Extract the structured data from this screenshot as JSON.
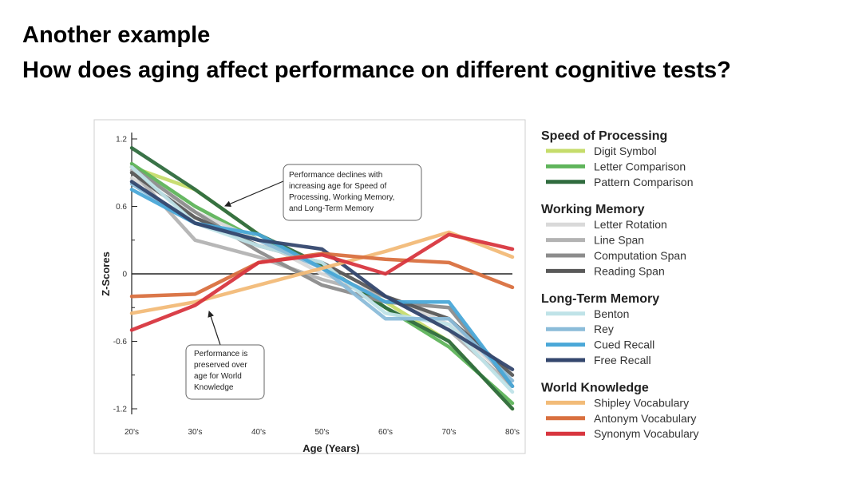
{
  "slide": {
    "title_line1": "Another example",
    "title_line2": "How does aging affect performance on different cognitive tests?"
  },
  "chart_data": {
    "type": "line",
    "xlabel": "Age (Years)",
    "ylabel": "Z-Scores",
    "ylim": [
      -1.2,
      1.2
    ],
    "yticks": [
      "1.2",
      "0.6",
      "0",
      "-0.6",
      "-1.2"
    ],
    "categories": [
      "20's",
      "30's",
      "40's",
      "50's",
      "60's",
      "70's",
      "80's"
    ],
    "grid": false,
    "legend_position": "right",
    "groups": [
      {
        "name": "Speed of Processing",
        "series": [
          {
            "name": "Digit Symbol",
            "color": "#c6dc6b",
            "values": [
              0.95,
              0.75,
              0.35,
              0.05,
              -0.25,
              -0.6,
              -1.2
            ]
          },
          {
            "name": "Letter Comparison",
            "color": "#5fb45b",
            "values": [
              0.98,
              0.6,
              0.3,
              0.08,
              -0.3,
              -0.65,
              -1.15
            ]
          },
          {
            "name": "Pattern Comparison",
            "color": "#2f6b3e",
            "values": [
              1.12,
              0.75,
              0.35,
              0.08,
              -0.3,
              -0.6,
              -1.2
            ]
          }
        ]
      },
      {
        "name": "Working Memory",
        "series": [
          {
            "name": "Letter Rotation",
            "color": "#d9d9d9",
            "values": [
              0.85,
              0.55,
              0.3,
              0.0,
              -0.2,
              -0.45,
              -0.95
            ]
          },
          {
            "name": "Line Span",
            "color": "#b3b3b3",
            "values": [
              0.92,
              0.3,
              0.15,
              -0.05,
              -0.2,
              -0.5,
              -1.0
            ]
          },
          {
            "name": "Computation Span",
            "color": "#8c8c8c",
            "values": [
              0.95,
              0.55,
              0.2,
              -0.1,
              -0.25,
              -0.3,
              -1.0
            ]
          },
          {
            "name": "Reading Span",
            "color": "#595959",
            "values": [
              0.9,
              0.5,
              0.25,
              0.1,
              -0.2,
              -0.4,
              -0.9
            ]
          }
        ]
      },
      {
        "name": "Long-Term Memory",
        "series": [
          {
            "name": "Benton",
            "color": "#bfe3e8",
            "values": [
              0.95,
              0.45,
              0.25,
              0.1,
              -0.35,
              -0.45,
              -1.05
            ]
          },
          {
            "name": "Rey",
            "color": "#8bbcd9",
            "values": [
              0.8,
              0.45,
              0.3,
              0.05,
              -0.4,
              -0.4,
              -0.95
            ]
          },
          {
            "name": "Cued Recall",
            "color": "#4aa8d8",
            "values": [
              0.75,
              0.45,
              0.35,
              0.05,
              -0.25,
              -0.25,
              -1.0
            ]
          },
          {
            "name": "Free Recall",
            "color": "#34476e",
            "values": [
              0.82,
              0.45,
              0.3,
              0.22,
              -0.2,
              -0.5,
              -0.85
            ]
          }
        ]
      },
      {
        "name": "World Knowledge",
        "series": [
          {
            "name": "Shipley Vocabulary",
            "color": "#f2bb78",
            "values": [
              -0.35,
              -0.25,
              -0.1,
              0.05,
              0.2,
              0.37,
              0.15
            ]
          },
          {
            "name": "Antonym Vocabulary",
            "color": "#d9703f",
            "values": [
              -0.2,
              -0.18,
              0.1,
              0.18,
              0.13,
              0.1,
              -0.12
            ]
          },
          {
            "name": "Synonym Vocabulary",
            "color": "#d8363f",
            "values": [
              -0.5,
              -0.28,
              0.1,
              0.17,
              0.0,
              0.35,
              0.22
            ]
          }
        ]
      }
    ],
    "annotations": [
      {
        "lines": [
          "Performance declines with",
          "increasing age for Speed of",
          "Processing, Working Memory,",
          "and Long-Term Memory"
        ]
      },
      {
        "lines": [
          "Performance is",
          "preserved over",
          "age for World",
          "Knowledge"
        ]
      }
    ]
  }
}
